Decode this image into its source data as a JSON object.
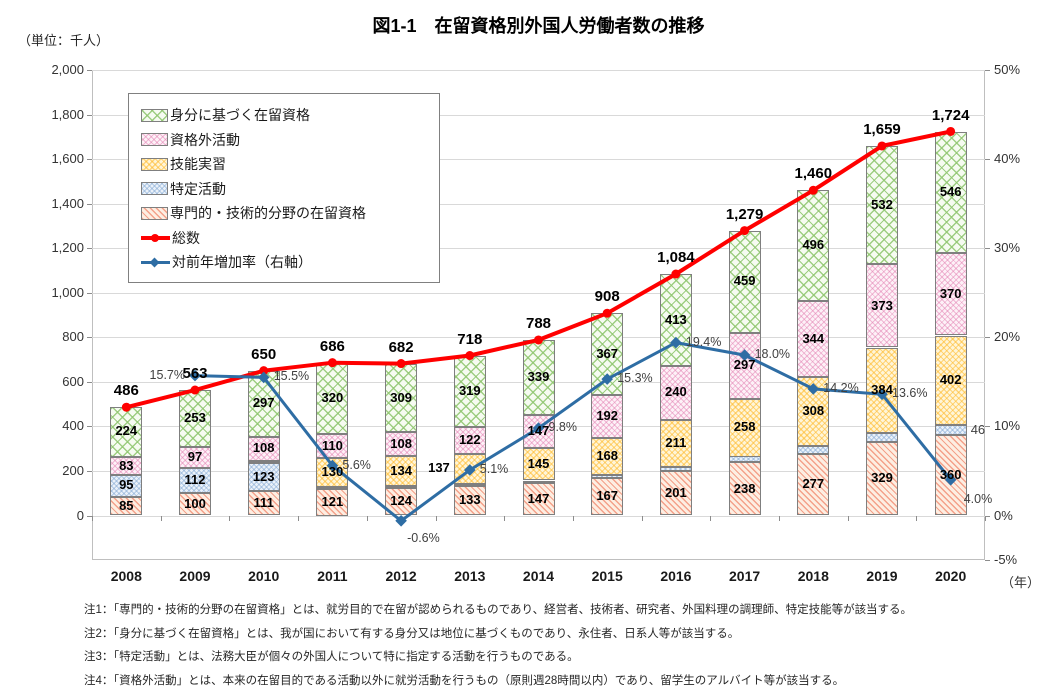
{
  "header": {
    "unit_label": "（単位：千人）",
    "title": "図1-1　在留資格別外国人労働者数の推移"
  },
  "chart_data": {
    "type": "combo: stacked-bar (left axis, thousands of workers) + line (total, left axis) + line (YoY growth rate, right axis)",
    "title": "図1-1　在留資格別外国人労働者数の推移",
    "unit": "千人",
    "categories": [
      "2008",
      "2009",
      "2010",
      "2011",
      "2012",
      "2013",
      "2014",
      "2015",
      "2016",
      "2017",
      "2018",
      "2019",
      "2020"
    ],
    "x_axis_suffix": "（年）",
    "grid": true,
    "legend_position": "top-left-inside",
    "left_axis": {
      "min": -200,
      "max": 2000,
      "grid_step": 200,
      "tick_labels": [
        "2,000",
        "1,800",
        "1,600",
        "1,400",
        "1,200",
        "1,000",
        "800",
        "600",
        "400",
        "200",
        "0"
      ],
      "tick_units": [
        2000,
        1800,
        1600,
        1400,
        1200,
        1000,
        800,
        600,
        400,
        200,
        0
      ]
    },
    "right_axis": {
      "tick_labels": [
        "50%",
        "40%",
        "30%",
        "20%",
        "10%",
        "0%",
        "-5%"
      ],
      "tick_units": [
        2000,
        1600,
        1200,
        800,
        400,
        0,
        -200
      ],
      "percent_to_units": 40
    },
    "bar_series": [
      {
        "name": "専門的・技術的分野の在留資格",
        "pattern": "professional",
        "values": [
          85,
          100,
          111,
          121,
          124,
          133,
          147,
          167,
          201,
          238,
          277,
          329,
          360
        ],
        "labels": [
          "85",
          "100",
          "111",
          "121",
          "124",
          "133",
          "147",
          "167",
          "201",
          "238",
          "277",
          "329",
          "360"
        ]
      },
      {
        "name": "特定活動",
        "pattern": "designated",
        "values": [
          95,
          112,
          123,
          5,
          7,
          7,
          10,
          14,
          19,
          27,
          35,
          41,
          46
        ],
        "labels": [
          "95",
          "112",
          "123",
          "",
          "",
          "",
          "",
          "",
          "",
          "",
          "",
          "",
          "46"
        ],
        "label_pos": [
          null,
          null,
          null,
          null,
          null,
          null,
          null,
          null,
          null,
          null,
          null,
          null,
          "right"
        ]
      },
      {
        "name": "技能実習",
        "pattern": "training",
        "values": [
          0,
          0,
          11,
          130,
          134,
          137,
          145,
          168,
          211,
          258,
          308,
          384,
          402
        ],
        "labels": [
          "",
          "",
          "",
          "130",
          "134",
          "137",
          "145",
          "168",
          "211",
          "258",
          "308",
          "384",
          "402"
        ],
        "label_pos": [
          null,
          null,
          null,
          null,
          null,
          "left",
          null,
          null,
          null,
          null,
          null,
          null,
          null
        ]
      },
      {
        "name": "資格外活動",
        "pattern": "extra",
        "values": [
          83,
          97,
          108,
          110,
          108,
          122,
          147,
          192,
          240,
          297,
          344,
          373,
          370
        ],
        "labels": [
          "83",
          "97",
          "108",
          "110",
          "108",
          "122",
          "147",
          "192",
          "240",
          "297",
          "344",
          "373",
          "370"
        ]
      },
      {
        "name": "身分に基づく在留資格",
        "pattern": "identity",
        "values": [
          224,
          253,
          297,
          320,
          309,
          319,
          339,
          367,
          413,
          459,
          496,
          532,
          546
        ],
        "labels": [
          "224",
          "253",
          "297",
          "320",
          "309",
          "319",
          "339",
          "367",
          "413",
          "459",
          "496",
          "532",
          "546"
        ]
      }
    ],
    "total_line": {
      "name": "総数",
      "color": "#ff0000",
      "marker": "circle",
      "axis": "left",
      "values": [
        486,
        563,
        650,
        686,
        682,
        718,
        788,
        908,
        1084,
        1279,
        1460,
        1659,
        1724
      ],
      "labels": [
        "486",
        "563",
        "650",
        "686",
        "682",
        "718",
        "788",
        "908",
        "1,084",
        "1,279",
        "1,460",
        "1,659",
        "1,724"
      ]
    },
    "growth_line": {
      "name": "対前年増加率（右軸）",
      "color": "#2e6da4",
      "marker": "diamond",
      "axis": "right",
      "values": [
        null,
        15.7,
        15.5,
        5.6,
        -0.6,
        5.1,
        9.8,
        15.3,
        19.4,
        18.0,
        14.2,
        13.6,
        4.0
      ],
      "labels": [
        "",
        "15.7%",
        "15.5%",
        "5.6%",
        "-0.6%",
        "5.1%",
        "9.8%",
        "15.3%",
        "19.4%",
        "18.0%",
        "14.2%",
        "13.6%",
        "4.0%"
      ],
      "label_pos": [
        "",
        "left",
        "right",
        "right",
        "below",
        "right",
        "right",
        "right",
        "right",
        "right",
        "right",
        "right",
        "below-right"
      ]
    }
  },
  "legend": {
    "items": [
      {
        "label": "身分に基づく在留資格",
        "type": "pattern",
        "pattern": "identity"
      },
      {
        "label": "資格外活動",
        "type": "pattern",
        "pattern": "extra"
      },
      {
        "label": "技能実習",
        "type": "pattern",
        "pattern": "training"
      },
      {
        "label": "特定活動",
        "type": "pattern",
        "pattern": "designated"
      },
      {
        "label": "専門的・技術的分野の在留資格",
        "type": "pattern",
        "pattern": "professional"
      },
      {
        "label": "総数",
        "type": "line",
        "color": "#ff0000",
        "marker": "circle"
      },
      {
        "label": "対前年増加率（右軸）",
        "type": "line",
        "color": "#2e6da4",
        "marker": "diamond"
      }
    ]
  },
  "notes": [
    "注1：「専門的・技術的分野の在留資格」とは、就労目的で在留が認められるものであり、経営者、技術者、研究者、外国料理の調理師、特定技能等が該当する。",
    "注2：「身分に基づく在留資格」とは、我が国において有する身分又は地位に基づくものであり、永住者、日系人等が該当する。",
    "注3：「特定活動」とは、法務大臣が個々の外国人について特に指定する活動を行うものである。",
    "注4：「資格外活動」とは、本来の在留目的である活動以外に就労活動を行うもの（原則週28時間以内）であり、留学生のアルバイト等が該当する。"
  ]
}
